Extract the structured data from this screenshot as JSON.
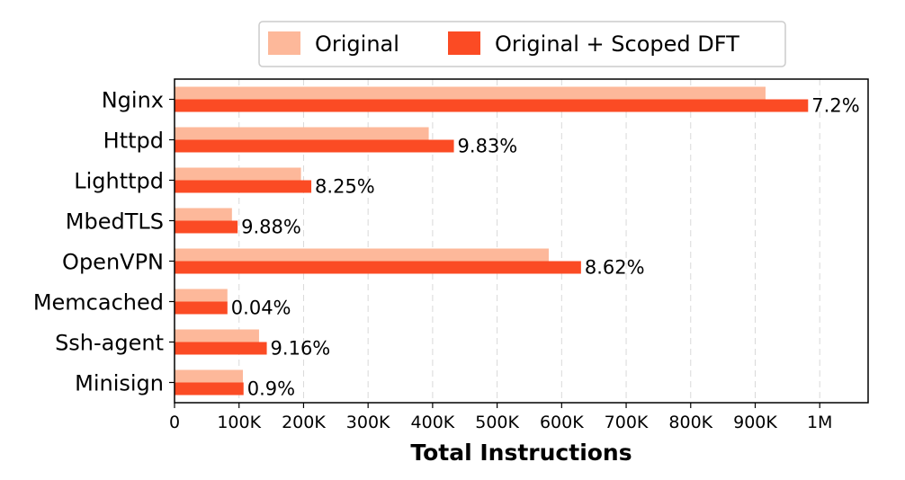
{
  "chart_data": {
    "type": "bar",
    "orientation": "horizontal",
    "categories": [
      "Nginx",
      "Httpd",
      "Lighttpd",
      "MbedTLS",
      "OpenVPN",
      "Memcached",
      "Ssh-agent",
      "Minisign"
    ],
    "series": [
      {
        "name": "Original",
        "color": "#fdb89a",
        "values": [
          916000,
          394000,
          196000,
          89000,
          580000,
          82000,
          131000,
          106000
        ]
      },
      {
        "name": "Original + Scoped DFT",
        "color": "#fb4b24",
        "values": [
          982000,
          433000,
          212000,
          97800,
          630000,
          82000,
          143000,
          107000
        ]
      }
    ],
    "bar_labels": [
      "7.2%",
      "9.83%",
      "8.25%",
      "9.88%",
      "8.62%",
      "0.04%",
      "9.16%",
      "0.9%"
    ],
    "xlabel": "Total Instructions",
    "ylabel": "",
    "title": "",
    "xlim": [
      0,
      1075000
    ],
    "xticks": [
      0,
      100000,
      200000,
      300000,
      400000,
      500000,
      600000,
      700000,
      800000,
      900000,
      1000000
    ],
    "xtick_labels": [
      "0",
      "100K",
      "200K",
      "300K",
      "400K",
      "500K",
      "600K",
      "700K",
      "800K",
      "900K",
      "1M"
    ],
    "grid": "vertical dashed",
    "legend": "top"
  }
}
